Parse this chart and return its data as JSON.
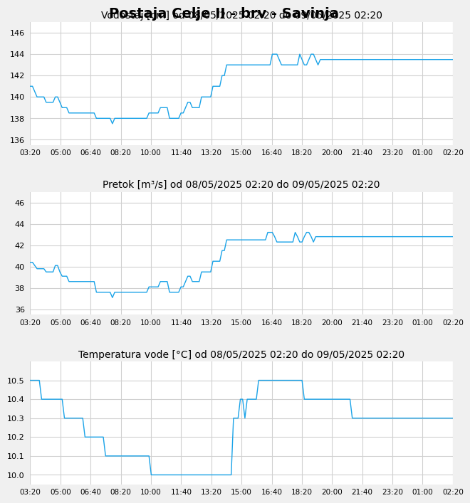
{
  "title": "Postaja Celje II - brv - Savinja",
  "title_fontsize": 14,
  "subtitle1": "Vodostaj [cm] od 08/05/2025 02:20 do 09/05/2025 02:20",
  "subtitle2": "Pretok [m³/s] od 08/05/2025 02:20 do 09/05/2025 02:20",
  "subtitle3": "Temperatura vode [°C] od 08/05/2025 02:20 do 09/05/2025 02:20",
  "subtitle_fontsize": 10,
  "line_color": "#1aa3e8",
  "bg_color": "#f0f0f0",
  "plot_bg_color": "#ffffff",
  "grid_color": "#d0d0d0",
  "xtick_labels": [
    "03:20",
    "05:00",
    "06:40",
    "08:20",
    "10:00",
    "11:40",
    "13:20",
    "15:00",
    "16:40",
    "18:20",
    "20:00",
    "21:40",
    "23:20",
    "01:00",
    "02:20"
  ],
  "ylim1": [
    135.5,
    147
  ],
  "yticks1": [
    136,
    138,
    140,
    142,
    144,
    146
  ],
  "ylim2": [
    35.5,
    47
  ],
  "yticks2": [
    36,
    38,
    40,
    42,
    44,
    46
  ],
  "ylim3": [
    9.95,
    10.6
  ],
  "yticks3": [
    10.0,
    10.1,
    10.2,
    10.3,
    10.4,
    10.5
  ],
  "vodostaj": [
    141,
    141,
    140.5,
    140,
    140,
    140,
    140,
    139.5,
    139.5,
    139.5,
    139.5,
    140,
    140,
    139.5,
    139,
    139,
    139,
    138.5,
    138.5,
    138.5,
    138.5,
    138.5,
    138.5,
    138.5,
    138.5,
    138.5,
    138.5,
    138.5,
    138.5,
    138,
    138,
    138,
    138,
    138,
    138,
    138,
    137.5,
    138,
    138,
    138,
    138,
    138,
    138,
    138,
    138,
    138,
    138,
    138,
    138,
    138,
    138,
    138,
    138.5,
    138.5,
    138.5,
    138.5,
    138.5,
    139,
    139,
    139,
    139,
    138,
    138,
    138,
    138,
    138,
    138.5,
    138.5,
    139,
    139.5,
    139.5,
    139,
    139,
    139,
    139,
    140,
    140,
    140,
    140,
    140,
    141,
    141,
    141,
    141,
    142,
    142,
    143,
    143,
    143,
    143,
    143,
    143,
    143,
    143,
    143,
    143,
    143,
    143,
    143,
    143,
    143,
    143,
    143,
    143,
    143,
    143,
    144,
    144,
    144,
    143.5,
    143,
    143,
    143,
    143,
    143,
    143,
    143,
    143,
    144,
    143.5,
    143,
    143,
    143.5,
    144,
    144,
    143.5,
    143,
    143.5,
    143.5,
    143.5,
    143.5,
    143.5,
    143.5,
    143.5,
    143.5,
    143.5,
    143.5,
    143.5,
    143.5,
    143.5,
    143.5,
    143.5,
    143.5,
    143.5,
    143.5,
    143.5,
    143.5,
    143.5,
    143.5,
    143.5,
    143.5,
    143.5,
    143.5,
    143.5,
    143.5,
    143.5,
    143.5,
    143.5,
    143.5,
    143.5,
    143.5,
    143.5,
    143.5,
    143.5,
    143.5,
    143.5,
    143.5,
    143.5,
    143.5,
    143.5,
    143.5,
    143.5,
    143.5,
    143.5,
    143.5,
    143.5,
    143.5,
    143.5,
    143.5,
    143.5,
    143.5,
    143.5,
    143.5,
    143.5,
    143.5,
    143.5
  ],
  "pretok": [
    40.4,
    40.4,
    40.1,
    39.8,
    39.8,
    39.8,
    39.8,
    39.5,
    39.5,
    39.5,
    39.5,
    40.1,
    40.1,
    39.5,
    39.1,
    39.1,
    39.1,
    38.6,
    38.6,
    38.6,
    38.6,
    38.6,
    38.6,
    38.6,
    38.6,
    38.6,
    38.6,
    38.6,
    38.6,
    37.6,
    37.6,
    37.6,
    37.6,
    37.6,
    37.6,
    37.6,
    37.1,
    37.6,
    37.6,
    37.6,
    37.6,
    37.6,
    37.6,
    37.6,
    37.6,
    37.6,
    37.6,
    37.6,
    37.6,
    37.6,
    37.6,
    37.6,
    38.1,
    38.1,
    38.1,
    38.1,
    38.1,
    38.6,
    38.6,
    38.6,
    38.6,
    37.6,
    37.6,
    37.6,
    37.6,
    37.6,
    38.1,
    38.1,
    38.6,
    39.1,
    39.1,
    38.6,
    38.6,
    38.6,
    38.6,
    39.5,
    39.5,
    39.5,
    39.5,
    39.5,
    40.5,
    40.5,
    40.5,
    40.5,
    41.5,
    41.5,
    42.5,
    42.5,
    42.5,
    42.5,
    42.5,
    42.5,
    42.5,
    42.5,
    42.5,
    42.5,
    42.5,
    42.5,
    42.5,
    42.5,
    42.5,
    42.5,
    42.5,
    42.5,
    43.2,
    43.2,
    43.2,
    42.8,
    42.3,
    42.3,
    42.3,
    42.3,
    42.3,
    42.3,
    42.3,
    42.3,
    43.2,
    42.8,
    42.3,
    42.3,
    42.8,
    43.2,
    43.2,
    42.8,
    42.3,
    42.8,
    42.8,
    42.8,
    42.8,
    42.8,
    42.8,
    42.8,
    42.8,
    42.8,
    42.8,
    42.8,
    42.8,
    42.8,
    42.8,
    42.8,
    42.8,
    42.8,
    42.8,
    42.8,
    42.8,
    42.8,
    42.8,
    42.8,
    42.8,
    42.8,
    42.8,
    42.8,
    42.8,
    42.8,
    42.8,
    42.8,
    42.8,
    42.8,
    42.8,
    42.8,
    42.8,
    42.8,
    42.8,
    42.8,
    42.8,
    42.8,
    42.8,
    42.8,
    42.8,
    42.8,
    42.8,
    42.8,
    42.8,
    42.8,
    42.8,
    42.8,
    42.8,
    42.8,
    42.8,
    42.8,
    42.8,
    42.8,
    42.8,
    42.8,
    42.8,
    42.8
  ],
  "temp": [
    10.5,
    10.5,
    10.5,
    10.5,
    10.5,
    10.4,
    10.4,
    10.4,
    10.4,
    10.4,
    10.4,
    10.4,
    10.4,
    10.4,
    10.4,
    10.3,
    10.3,
    10.3,
    10.3,
    10.3,
    10.3,
    10.3,
    10.3,
    10.3,
    10.2,
    10.2,
    10.2,
    10.2,
    10.2,
    10.2,
    10.2,
    10.2,
    10.2,
    10.1,
    10.1,
    10.1,
    10.1,
    10.1,
    10.1,
    10.1,
    10.1,
    10.1,
    10.1,
    10.1,
    10.1,
    10.1,
    10.1,
    10.1,
    10.1,
    10.1,
    10.1,
    10.1,
    10.1,
    10.0,
    10.0,
    10.0,
    10.0,
    10.0,
    10.0,
    10.0,
    10.0,
    10.0,
    10.0,
    10.0,
    10.0,
    10.0,
    10.0,
    10.0,
    10.0,
    10.0,
    10.0,
    10.0,
    10.0,
    10.0,
    10.0,
    10.0,
    10.0,
    10.0,
    10.0,
    10.0,
    10.0,
    10.0,
    10.0,
    10.0,
    10.0,
    10.0,
    10.0,
    10.0,
    10.0,
    10.3,
    10.3,
    10.3,
    10.4,
    10.4,
    10.3,
    10.4,
    10.4,
    10.4,
    10.4,
    10.4,
    10.5,
    10.5,
    10.5,
    10.5,
    10.5,
    10.5,
    10.5,
    10.5,
    10.5,
    10.5,
    10.5,
    10.5,
    10.5,
    10.5,
    10.5,
    10.5,
    10.5,
    10.5,
    10.5,
    10.5,
    10.4,
    10.4,
    10.4,
    10.4,
    10.4,
    10.4,
    10.4,
    10.4,
    10.4,
    10.4,
    10.4,
    10.4,
    10.4,
    10.4,
    10.4,
    10.4,
    10.4,
    10.4,
    10.4,
    10.4,
    10.4,
    10.3,
    10.3,
    10.3,
    10.3,
    10.3,
    10.3,
    10.3,
    10.3,
    10.3,
    10.3,
    10.3,
    10.3,
    10.3,
    10.3,
    10.3,
    10.3,
    10.3,
    10.3,
    10.3,
    10.3,
    10.3,
    10.3,
    10.3,
    10.3,
    10.3,
    10.3,
    10.3,
    10.3,
    10.3,
    10.3,
    10.3,
    10.3,
    10.3,
    10.3,
    10.3,
    10.3,
    10.3,
    10.3,
    10.3,
    10.3,
    10.3,
    10.3,
    10.3,
    10.3,
    10.3
  ]
}
